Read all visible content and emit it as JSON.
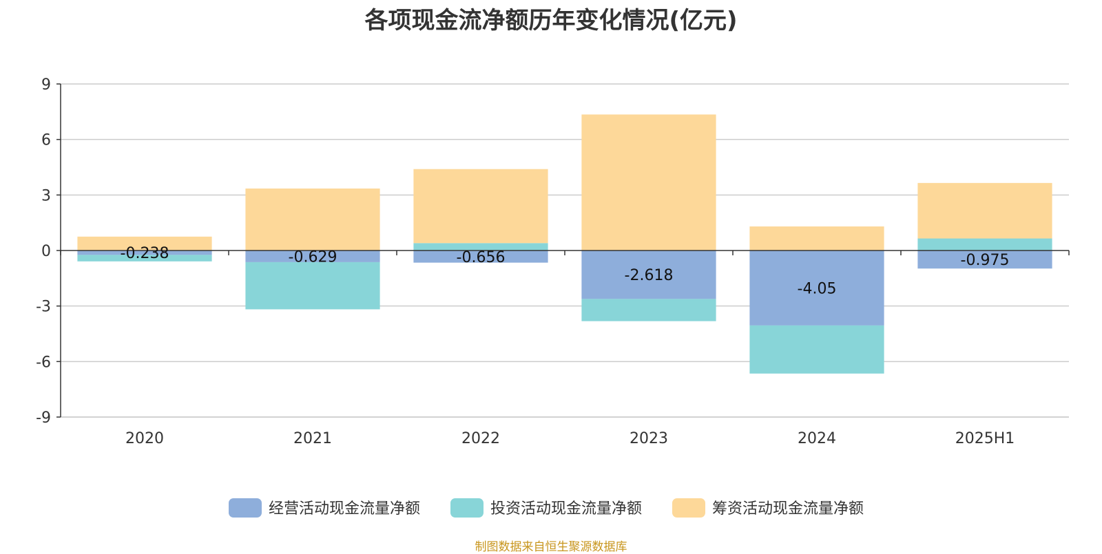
{
  "chart_data": {
    "type": "bar",
    "stacked": true,
    "title": "各项现金流净额历年变化情况(亿元)",
    "categories": [
      "2020",
      "2021",
      "2022",
      "2023",
      "2024",
      "2025H1"
    ],
    "ylim": [
      -9,
      9
    ],
    "yticks": [
      9,
      6,
      3,
      0,
      -3,
      -6,
      -9
    ],
    "grid": true,
    "legend_position": "bottom",
    "series": [
      {
        "name": "经营活动现金流量净额",
        "color": "#8eaedb",
        "values": [
          -0.238,
          -0.629,
          -0.656,
          -2.618,
          -4.05,
          -0.975
        ],
        "labels": [
          "-0.238",
          "-0.629",
          "-0.656",
          "-2.618",
          "-4.05",
          "-0.975"
        ]
      },
      {
        "name": "投资活动现金流量净额",
        "color": "#88d5d8",
        "values": [
          -0.35,
          -2.55,
          0.4,
          -1.2,
          -2.6,
          0.65
        ]
      },
      {
        "name": "筹资活动现金流量净额",
        "color": "#fdd899",
        "values": [
          0.75,
          3.35,
          4.0,
          7.35,
          1.3,
          3.0
        ]
      }
    ]
  },
  "source_note": "制图数据来自恒生聚源数据库"
}
